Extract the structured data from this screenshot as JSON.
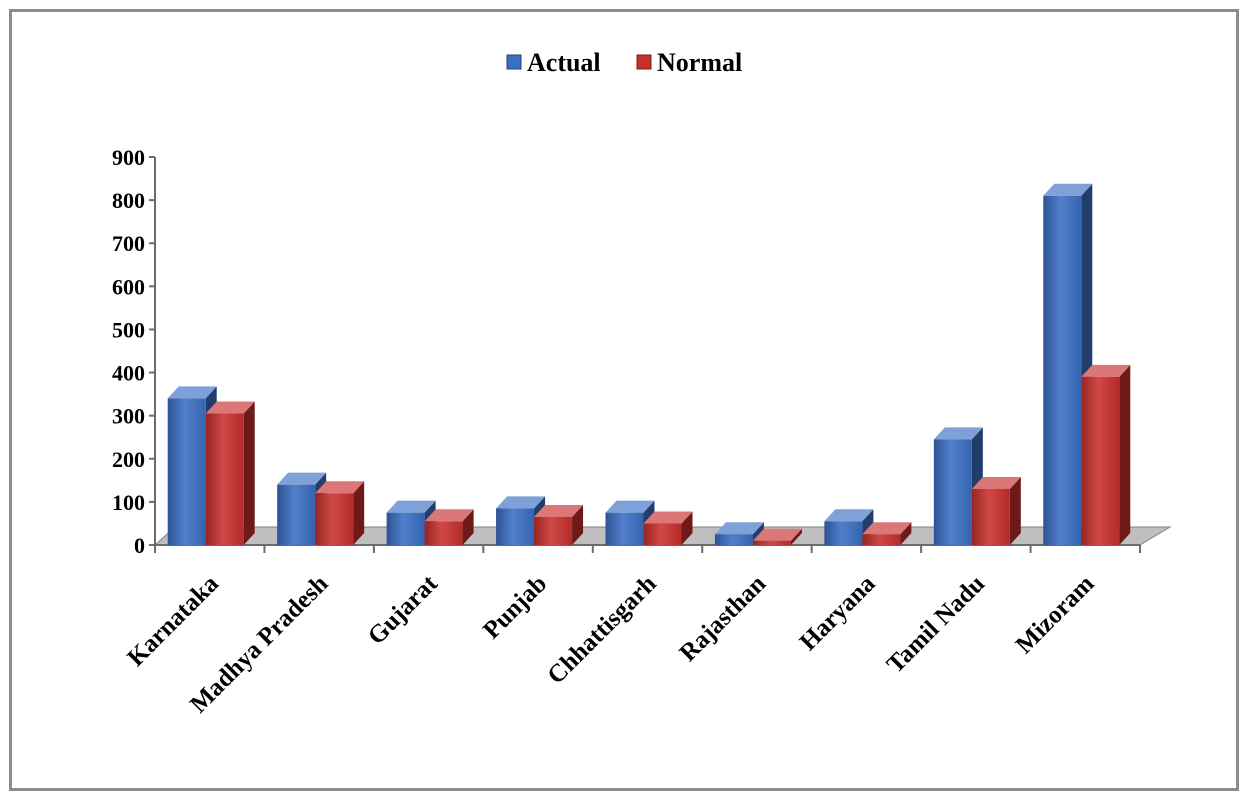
{
  "chart_data": {
    "type": "bar",
    "title": "",
    "xlabel": "",
    "ylabel": "",
    "categories": [
      "Karnataka",
      "Madhya Pradesh",
      "Gujarat",
      "Punjab",
      "Chhattisgarh",
      "Rajasthan",
      "Haryana",
      "Tamil Nadu",
      "Mizoram"
    ],
    "series": [
      {
        "name": "Actual",
        "values": [
          340,
          140,
          75,
          85,
          75,
          25,
          55,
          245,
          810
        ]
      },
      {
        "name": "Normal",
        "values": [
          305,
          120,
          55,
          65,
          50,
          10,
          25,
          130,
          390
        ]
      }
    ],
    "ylim": [
      0,
      900
    ],
    "yticks": [
      "0",
      "100",
      "200",
      "300",
      "400",
      "500",
      "600",
      "700",
      "800",
      "900"
    ],
    "grid": false,
    "legend": "top-center",
    "colors": {
      "Actual": "#3a6fc4",
      "Normal": "#c8302e"
    }
  }
}
